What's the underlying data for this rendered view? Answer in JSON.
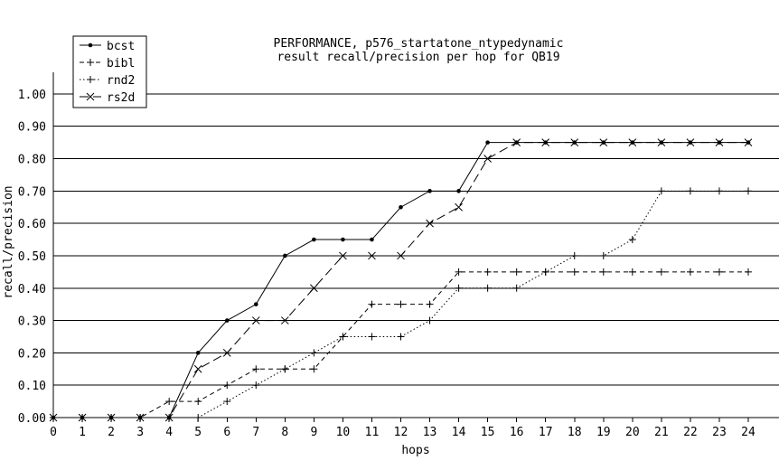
{
  "chart_data": {
    "type": "line",
    "title": [
      "PERFORMANCE, p576_startatone_ntypedynamic",
      "result recall/precision per hop for QB19"
    ],
    "xlabel": "hops",
    "ylabel": "recall/precision",
    "x": [
      0,
      1,
      2,
      3,
      4,
      5,
      6,
      7,
      8,
      9,
      10,
      11,
      12,
      13,
      14,
      15,
      16,
      17,
      18,
      19,
      20,
      21,
      22,
      23,
      24
    ],
    "xlim": [
      0,
      24
    ],
    "ylim": [
      0,
      1.05
    ],
    "yticks": [
      "0.00",
      "0.10",
      "0.20",
      "0.30",
      "0.40",
      "0.50",
      "0.60",
      "0.70",
      "0.80",
      "0.90",
      "1.00"
    ],
    "xticks": [
      "0",
      "1",
      "2",
      "3",
      "4",
      "5",
      "6",
      "7",
      "8",
      "9",
      "10",
      "11",
      "12",
      "13",
      "14",
      "15",
      "16",
      "17",
      "18",
      "19",
      "20",
      "21",
      "22",
      "23",
      "24"
    ],
    "grid": "horizontal",
    "legend_position": "top-left",
    "series": [
      {
        "name": "bcst",
        "marker": "dot",
        "dash": "solid",
        "values": [
          0,
          0,
          0,
          0,
          0,
          0.2,
          0.3,
          0.35,
          0.5,
          0.55,
          0.55,
          0.55,
          0.65,
          0.7,
          0.7,
          0.85,
          0.85,
          0.85,
          0.85,
          0.85,
          0.85,
          0.85,
          0.85,
          0.85,
          0.85
        ]
      },
      {
        "name": "bibl",
        "marker": "plus",
        "dash": "dashed",
        "values": [
          0,
          0,
          0,
          0,
          0.05,
          0.05,
          0.1,
          0.15,
          0.15,
          0.15,
          0.25,
          0.35,
          0.35,
          0.35,
          0.45,
          0.45,
          0.45,
          0.45,
          0.45,
          0.45,
          0.45,
          0.45,
          0.45,
          0.45,
          0.45
        ]
      },
      {
        "name": "rnd2",
        "marker": "plus",
        "dash": "dotted",
        "values": [
          0,
          0,
          0,
          0,
          0,
          0,
          0.05,
          0.1,
          0.15,
          0.2,
          0.25,
          0.25,
          0.25,
          0.3,
          0.4,
          0.4,
          0.4,
          0.45,
          0.5,
          0.5,
          0.55,
          0.7,
          0.7,
          0.7,
          0.7
        ]
      },
      {
        "name": "rs2d",
        "marker": "cross",
        "dash": "longdash",
        "values": [
          0,
          0,
          0,
          0,
          0,
          0.15,
          0.2,
          0.3,
          0.3,
          0.4,
          0.5,
          0.5,
          0.5,
          0.6,
          0.65,
          0.8,
          0.85,
          0.85,
          0.85,
          0.85,
          0.85,
          0.85,
          0.85,
          0.85,
          0.85
        ]
      }
    ]
  }
}
